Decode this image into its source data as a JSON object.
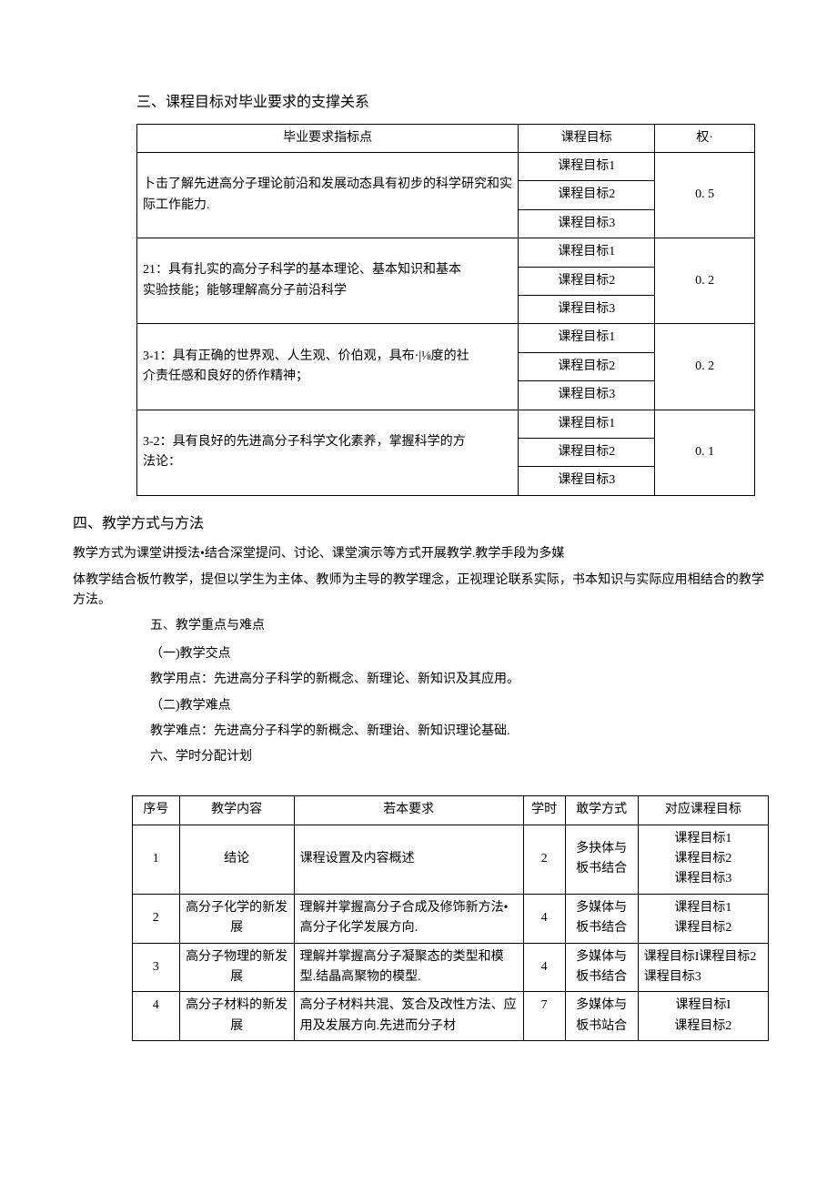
{
  "section3": {
    "title": "三、课程目标对毕业要求的支撑关系",
    "table": {
      "headers": [
        "毕业要求指标点",
        "课程目标",
        "权·"
      ],
      "rows": [
        {
          "req": "卜击了解先进高分子理论前沿和发展动态具有初步的科学研究和实际工作能力.",
          "goals": [
            "课程目标1",
            "课程目标2",
            "课程目标3"
          ],
          "weight": "0. 5"
        },
        {
          "req": "21：具有扎实的高分子科学的基本理论、基本知识和基本\n实验技能；能够理解高分子前沿科学",
          "goals": [
            "课程目标1",
            "课程目标2",
            "课程目标3"
          ],
          "weight": "0. 2"
        },
        {
          "req": "3-1：具有正确的世界观、人生观、价伯观，具布·|⅛度的社\n介责任感和良好的侨作精神；",
          "goals": [
            "课程目标1",
            "课程目标2",
            "课程目标3"
          ],
          "weight": "0. 2"
        },
        {
          "req": "3-2：具有良好的先进高分子科学文化素养，掌握科学的方\n法论：",
          "goals": [
            "课程目标1",
            "课程目标2",
            "课程目标3"
          ],
          "weight": "0. 1"
        }
      ]
    }
  },
  "section4": {
    "title": "四、教学方式与方法",
    "paragraphs": [
      "教学方式为课堂讲授法•结合深堂提问、讨论、课堂演示等方式开展教学.教学手段为多媒",
      "体教学结合板竹教学，提但以学生为主体、教师为主导的教学理念，正视理论联系实际，书本知识与实际应用相结合的教学方法。"
    ]
  },
  "section5": {
    "title": "五、教学重点与难点",
    "sub1_title": "（一)教学交点",
    "sub1_text": "教学用点：先进高分子科学的新概念、新理论、新知识及其应用。",
    "sub2_title": "（二)教学难点",
    "sub2_text": "教学难点：先进高分子科学的新概念、新理诒、新知识理论基础."
  },
  "section6": {
    "title": "六、学时分配计划",
    "table": {
      "headers": [
        "序号",
        "教学内容",
        "若本要求",
        "学时",
        "敢学方式",
        "对应课程目标"
      ],
      "rows": [
        {
          "idx": "1",
          "content": "结论",
          "req": "课程设置及内容概述",
          "hours": "2",
          "mode": "多抉体与板书结合",
          "goals": [
            "课程目标1",
            "课程目标2",
            "课程目标3"
          ]
        },
        {
          "idx": "2",
          "content": "高分子化学的新发展",
          "req": "理解并掌握高分子合成及修饰新方法•高分子化学发展方向.",
          "hours": "4",
          "mode": "多媒体与板书结合",
          "goals": [
            "课程目标1",
            "课程目标2"
          ]
        },
        {
          "idx": "3",
          "content": "高分子物理的新发展",
          "req": "理解并掌握高分子凝聚态的类型和模型.结晶高聚物的模型.",
          "hours": "4",
          "mode": "多媒体与板书结合",
          "goals": [
            "课程目标I课程目标2课程目标3"
          ]
        },
        {
          "idx": "4",
          "content": "高分子材料的新发展",
          "req": "高分子材料共混、笈合及改性方法、应用及发展方向.先进而分子材",
          "hours": "7",
          "mode": "多媒体与板书站合",
          "goals": [
            "课程目标I",
            "课程目标2"
          ]
        }
      ]
    }
  }
}
